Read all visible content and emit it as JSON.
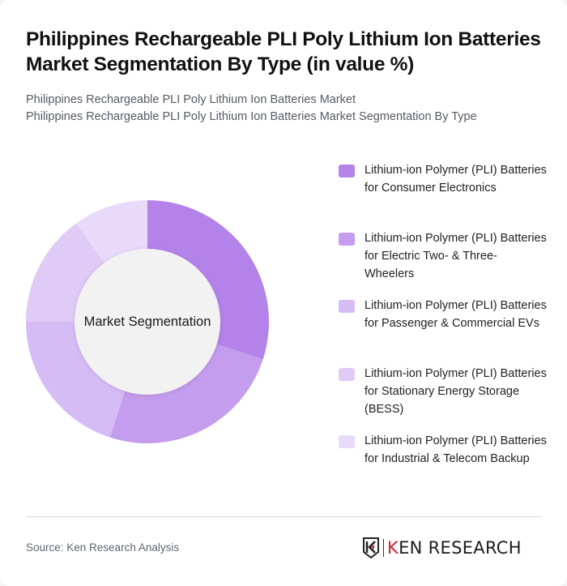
{
  "header": {
    "title": "Philippines Rechargeable PLI Poly Lithium Ion Batteries Market Segmentation By Type (in value %)",
    "subtitle_line1": "Philippines Rechargeable PLI Poly Lithium Ion Batteries Market",
    "subtitle_line2": "Philippines Rechargeable PLI Poly Lithium Ion Batteries Market Segmentation By Type"
  },
  "chart_data": {
    "type": "pie",
    "variant": "donut",
    "title": "Philippines Rechargeable PLI Poly Lithium Ion Batteries Market Segmentation By Type (in value %)",
    "center_label": "Market Segmentation",
    "categories": [
      "Lithium-ion Polymer (PLI) Batteries for Consumer Electronics",
      "Lithium-ion Polymer (PLI) Batteries for Electric Two- & Three-Wheelers",
      "Lithium-ion Polymer (PLI) Batteries for Passenger & Commercial EVs",
      "Lithium-ion Polymer (PLI) Batteries for Stationary Energy Storage (BESS)",
      "Lithium-ion Polymer (PLI) Batteries for Industrial & Telecom Backup"
    ],
    "values": [
      30,
      25,
      20,
      15,
      10
    ],
    "unit": "%",
    "colors": [
      "#b483ea",
      "#c49dee",
      "#d6bcf5",
      "#e0caf6",
      "#e9dafa"
    ],
    "legend_position": "right",
    "start_angle_deg": 0,
    "direction": "clockwise"
  },
  "legend": {
    "items": [
      {
        "label": "Lithium-ion Polymer (PLI) Batteries for Consumer Electronics",
        "color": "#b483ea"
      },
      {
        "label": "Lithium-ion Polymer (PLI) Batteries for Electric Two- & Three-Wheelers",
        "color": "#c49dee"
      },
      {
        "label": "Lithium-ion Polymer (PLI) Batteries for Passenger & Commercial EVs",
        "color": "#d6bcf5"
      },
      {
        "label": "Lithium-ion Polymer (PLI) Batteries for Stationary Energy Storage (BESS)",
        "color": "#e0caf6"
      },
      {
        "label": "Lithium-ion Polymer (PLI) Batteries for Industrial & Telecom Backup",
        "color": "#e9dafa"
      }
    ]
  },
  "footer": {
    "source": "Source: Ken Research Analysis",
    "logo_text_k": "K",
    "logo_text_rest": "EN RESEARCH"
  }
}
